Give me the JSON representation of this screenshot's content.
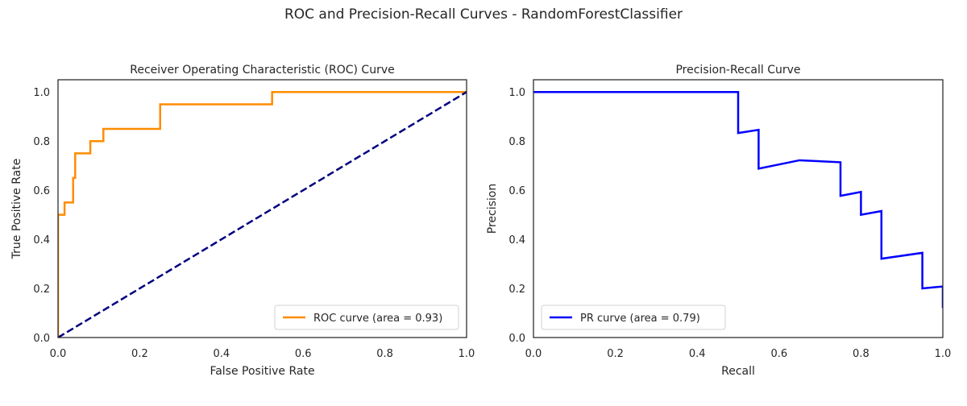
{
  "figure": {
    "suptitle": "ROC and Precision-Recall Curves - RandomForestClassifier"
  },
  "chart_data": [
    {
      "type": "line",
      "title": "Receiver Operating Characteristic (ROC) Curve",
      "xlabel": "False Positive Rate",
      "ylabel": "True Positive Rate",
      "xlim": [
        0.0,
        1.0
      ],
      "ylim": [
        0.0,
        1.05
      ],
      "xticks": [
        0.0,
        0.2,
        0.4,
        0.6,
        0.8,
        1.0
      ],
      "xtick_labels": [
        "0.0",
        "0.2",
        "0.4",
        "0.6",
        "0.8",
        "1.0"
      ],
      "yticks": [
        0.0,
        0.2,
        0.4,
        0.6,
        0.8,
        1.0
      ],
      "ytick_labels": [
        "0.0",
        "0.2",
        "0.4",
        "0.6",
        "0.8",
        "1.0"
      ],
      "grid": false,
      "legend_position": "lower right",
      "series": [
        {
          "name": "ROC curve (area = 0.93)",
          "color": "#ff8c00",
          "style": "solid",
          "x": [
            0.0,
            0.0,
            0.016,
            0.016,
            0.037,
            0.037,
            0.042,
            0.042,
            0.079,
            0.079,
            0.111,
            0.111,
            0.25,
            0.25,
            0.524,
            0.524,
            1.0
          ],
          "y": [
            0.0,
            0.5,
            0.5,
            0.55,
            0.55,
            0.65,
            0.65,
            0.75,
            0.75,
            0.8,
            0.8,
            0.85,
            0.85,
            0.95,
            0.95,
            1.0,
            1.0
          ]
        },
        {
          "name": "",
          "color": "#000080",
          "style": "dashed",
          "x": [
            0.0,
            1.0
          ],
          "y": [
            0.0,
            1.0
          ]
        }
      ]
    },
    {
      "type": "line",
      "title": "Precision-Recall Curve",
      "xlabel": "Recall",
      "ylabel": "Precision",
      "xlim": [
        0.0,
        1.0
      ],
      "ylim": [
        0.0,
        1.05
      ],
      "xticks": [
        0.0,
        0.2,
        0.4,
        0.6,
        0.8,
        1.0
      ],
      "xtick_labels": [
        "0.0",
        "0.2",
        "0.4",
        "0.6",
        "0.8",
        "1.0"
      ],
      "yticks": [
        0.0,
        0.2,
        0.4,
        0.6,
        0.8,
        1.0
      ],
      "ytick_labels": [
        "0.0",
        "0.2",
        "0.4",
        "0.6",
        "0.8",
        "1.0"
      ],
      "grid": false,
      "legend_position": "lower left",
      "series": [
        {
          "name": "PR curve (area = 0.79)",
          "color": "#0000ff",
          "style": "solid",
          "x": [
            0.0,
            0.5,
            0.5,
            0.55,
            0.55,
            0.65,
            0.75,
            0.75,
            0.8,
            0.8,
            0.85,
            0.85,
            0.95,
            0.95,
            1.0,
            1.0
          ],
          "y": [
            1.0,
            1.0,
            0.833,
            0.846,
            0.688,
            0.722,
            0.714,
            0.577,
            0.593,
            0.5,
            0.515,
            0.321,
            0.345,
            0.2,
            0.208,
            0.12
          ]
        }
      ]
    }
  ]
}
